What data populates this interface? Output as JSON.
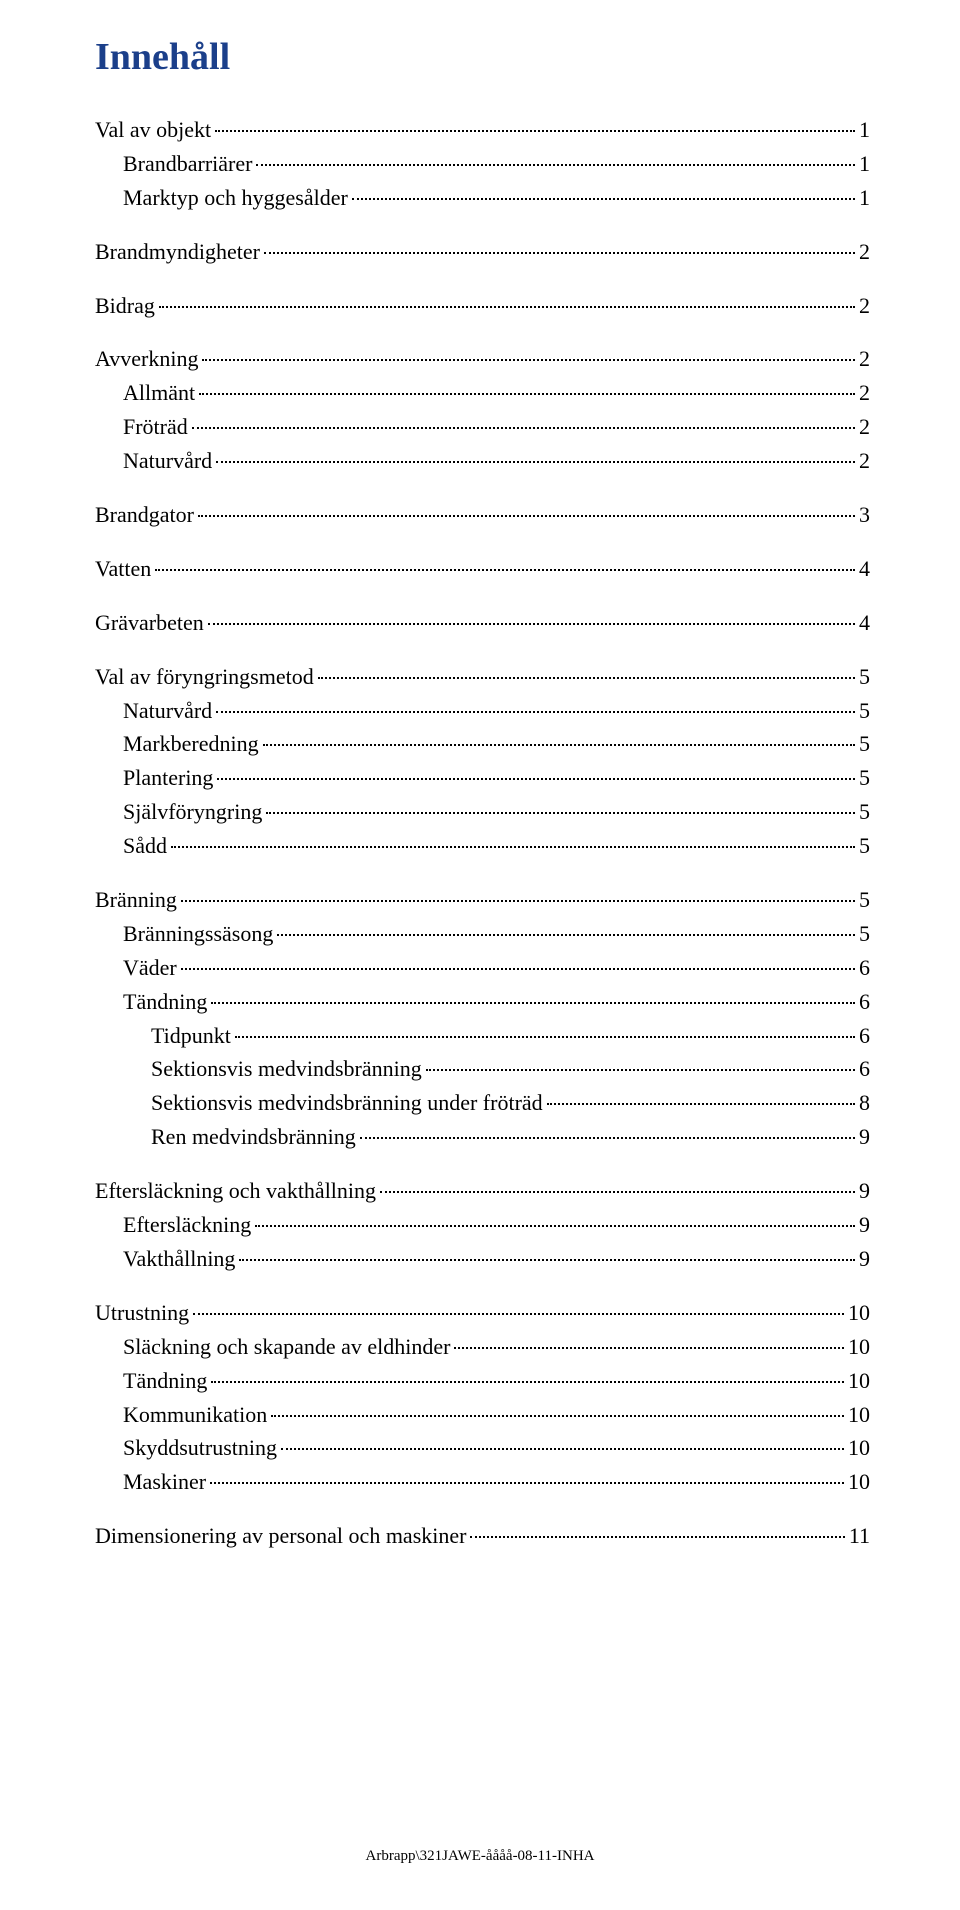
{
  "title": "Innehåll",
  "title_color": "#1b3f8a",
  "background_color": "#ffffff",
  "text_color": "#000000",
  "font_family": "Times New Roman",
  "title_fontsize": 38,
  "body_fontsize": 22,
  "footer_fontsize": 15,
  "footer": "Arbrapp\\321JAWE-åååå-08-11-INHA",
  "entries": [
    {
      "label": "Val av objekt",
      "page": "1",
      "level": 0
    },
    {
      "label": "Brandbarriärer",
      "page": "1",
      "level": 1
    },
    {
      "label": "Marktyp och hyggesålder",
      "page": "1",
      "level": 1
    },
    {
      "label": "Brandmyndigheter",
      "page": "2",
      "level": 0
    },
    {
      "label": "Bidrag",
      "page": "2",
      "level": 0
    },
    {
      "label": "Avverkning",
      "page": "2",
      "level": 0
    },
    {
      "label": "Allmänt",
      "page": "2",
      "level": 1
    },
    {
      "label": "Fröträd",
      "page": "2",
      "level": 1
    },
    {
      "label": "Naturvård",
      "page": "2",
      "level": 1
    },
    {
      "label": "Brandgator",
      "page": "3",
      "level": 0
    },
    {
      "label": "Vatten",
      "page": "4",
      "level": 0
    },
    {
      "label": "Grävarbeten",
      "page": "4",
      "level": 0
    },
    {
      "label": "Val av föryngringsmetod",
      "page": "5",
      "level": 0
    },
    {
      "label": "Naturvård",
      "page": "5",
      "level": 1
    },
    {
      "label": "Markberedning",
      "page": "5",
      "level": 1
    },
    {
      "label": "Plantering",
      "page": "5",
      "level": 1
    },
    {
      "label": "Självföryngring",
      "page": "5",
      "level": 1
    },
    {
      "label": "Sådd",
      "page": "5",
      "level": 1
    },
    {
      "label": "Bränning",
      "page": "5",
      "level": 0
    },
    {
      "label": "Bränningssäsong",
      "page": "5",
      "level": 1
    },
    {
      "label": "Väder",
      "page": "6",
      "level": 1
    },
    {
      "label": "Tändning",
      "page": "6",
      "level": 1
    },
    {
      "label": "Tidpunkt",
      "page": "6",
      "level": 2
    },
    {
      "label": "Sektionsvis medvindsbränning",
      "page": "6",
      "level": 2
    },
    {
      "label": "Sektionsvis medvindsbränning under fröträd",
      "page": "8",
      "level": 2
    },
    {
      "label": "Ren medvindsbränning",
      "page": "9",
      "level": 2
    },
    {
      "label": "Eftersläckning och vakthållning",
      "page": "9",
      "level": 0
    },
    {
      "label": "Eftersläckning",
      "page": "9",
      "level": 1
    },
    {
      "label": "Vakthållning",
      "page": "9",
      "level": 1
    },
    {
      "label": "Utrustning",
      "page": "10",
      "level": 0
    },
    {
      "label": "Släckning och skapande av eldhinder",
      "page": "10",
      "level": 1
    },
    {
      "label": "Tändning",
      "page": "10",
      "level": 1
    },
    {
      "label": "Kommunikation",
      "page": "10",
      "level": 1
    },
    {
      "label": "Skyddsutrustning",
      "page": "10",
      "level": 1
    },
    {
      "label": "Maskiner",
      "page": "10",
      "level": 1
    },
    {
      "label": "Dimensionering av personal och maskiner",
      "page": "11",
      "level": 0
    }
  ]
}
